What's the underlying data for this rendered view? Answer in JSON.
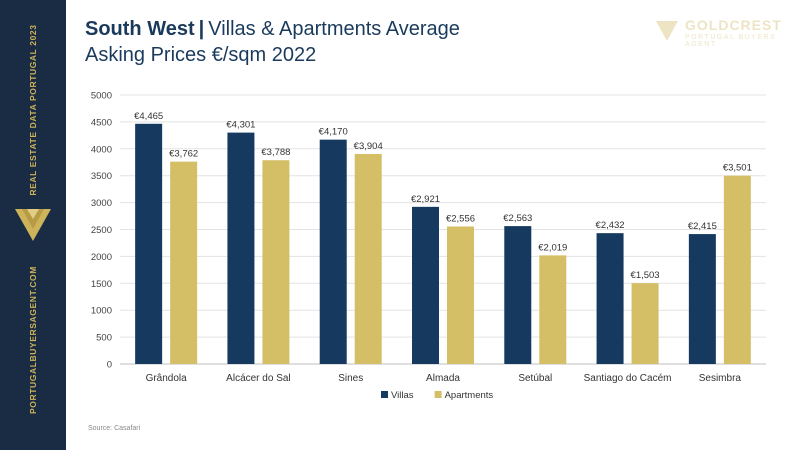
{
  "sidebar": {
    "top_text": "REAL ESTATE DATA PORTUGAL 2023",
    "bottom_text": "PORTUGALBUYERSAGENT.COM"
  },
  "header": {
    "title_bold": "South West",
    "title_separator": "|",
    "title_rest": "Villas & Apartments Average",
    "subtitle": "Asking Prices €/sqm 2022"
  },
  "watermark": {
    "line1": "GOLDCREST",
    "line2": "PORTUGAL BUYERS AGENT"
  },
  "source": "Source: Casafari",
  "colors": {
    "villas": "#163a5f",
    "apartments": "#d4bf67",
    "sidebar": "#1a2c44",
    "accent_gold": "#cdb35a"
  },
  "chart_data": {
    "type": "bar",
    "categories": [
      "Grândola",
      "Alcácer do Sal",
      "Sines",
      "Almada",
      "Setúbal",
      "Santiago do Cacém",
      "Sesimbra"
    ],
    "series": [
      {
        "name": "Villas",
        "values": [
          4465,
          4301,
          4170,
          2921,
          2563,
          2432,
          2415
        ],
        "labels": [
          "€4,465",
          "€4,301",
          "€4,170",
          "€2,921",
          "€2,563",
          "€2,432",
          "€2,415"
        ],
        "color": "#163a5f"
      },
      {
        "name": "Apartments",
        "values": [
          3762,
          3788,
          3904,
          2556,
          2019,
          1503,
          3501
        ],
        "labels": [
          "€3,762",
          "€3,788",
          "€3,904",
          "€2,556",
          "€2,019",
          "€1,503",
          "€3,501"
        ],
        "color": "#d4bf67"
      }
    ],
    "yticks": [
      0,
      500,
      1000,
      1500,
      2000,
      2500,
      3000,
      3500,
      4000,
      4500,
      5000
    ],
    "ylim": [
      0,
      5000
    ],
    "grid": true,
    "legend": "bottom"
  }
}
